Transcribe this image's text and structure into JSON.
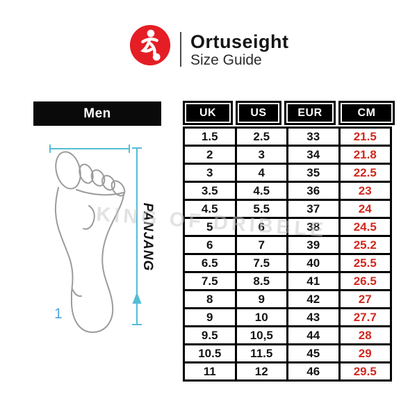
{
  "header": {
    "brand": "Ortuseight",
    "subtitle": "Size Guide",
    "logo_icon": "footballer-kicking-ball-icon",
    "logo_color": "#e51e25"
  },
  "left_panel": {
    "category_label": "Men",
    "dimension_label": "PANJANG",
    "footnote_label": "1",
    "illustration": "foot-sole-outline",
    "arrow_color": "#54bdd6"
  },
  "watermark": {
    "text": "KING OF DRIBBLE"
  },
  "size_table": {
    "columns": [
      "UK",
      "US",
      "EUR",
      "CM"
    ],
    "cm_color": "#d2281e",
    "rows": [
      [
        "1.5",
        "2.5",
        "33",
        "21.5"
      ],
      [
        "2",
        "3",
        "34",
        "21.8"
      ],
      [
        "3",
        "4",
        "35",
        "22.5"
      ],
      [
        "3.5",
        "4.5",
        "36",
        "23"
      ],
      [
        "4.5",
        "5.5",
        "37",
        "24"
      ],
      [
        "5",
        "6",
        "38",
        "24.5"
      ],
      [
        "6",
        "7",
        "39",
        "25.2"
      ],
      [
        "6.5",
        "7.5",
        "40",
        "25.5"
      ],
      [
        "7.5",
        "8.5",
        "41",
        "26.5"
      ],
      [
        "8",
        "9",
        "42",
        "27"
      ],
      [
        "9",
        "10",
        "43",
        "27.7"
      ],
      [
        "9.5",
        "10,5",
        "44",
        "28"
      ],
      [
        "10.5",
        "11.5",
        "45",
        "29"
      ],
      [
        "11",
        "12",
        "46",
        "29.5"
      ]
    ]
  }
}
